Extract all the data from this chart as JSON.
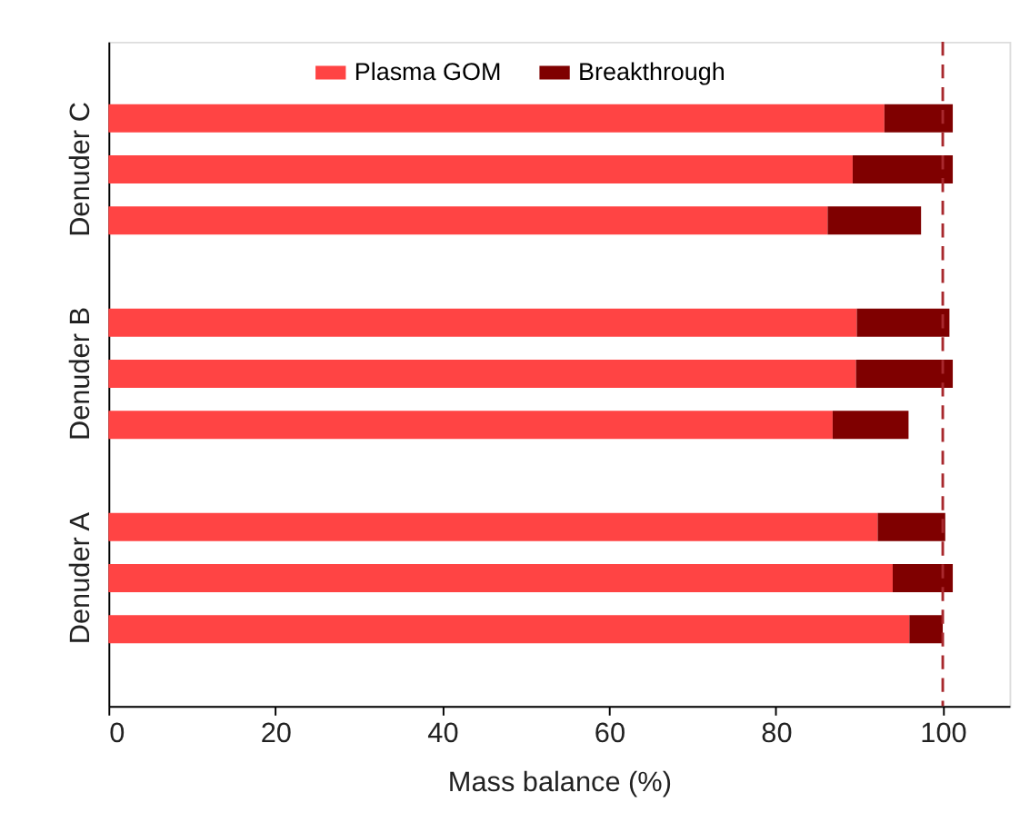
{
  "chart_data": {
    "type": "bar",
    "orientation": "horizontal",
    "stacked": true,
    "categories": [
      null,
      null,
      null,
      null,
      null,
      null,
      null,
      null,
      null,
      null,
      null,
      null,
      null
    ],
    "series": [
      {
        "name": "Plasma GOM",
        "color": "#ff4444",
        "values": [
          null,
          93.0,
          89.2,
          86.2,
          null,
          89.7,
          89.6,
          86.8,
          null,
          92.2,
          94.0,
          96.0,
          null
        ]
      },
      {
        "name": "Breakthrough",
        "color": "#7f0000",
        "values": [
          null,
          8.2,
          12.0,
          11.2,
          null,
          11.1,
          11.6,
          9.1,
          null,
          8.1,
          7.2,
          4.0,
          null
        ]
      }
    ],
    "annotations": [
      "Denuder C",
      "Denuder B",
      "Denuder A"
    ],
    "xlabel": "Mass balance (%)",
    "xlim": [
      0,
      108
    ],
    "xticks": [
      0,
      20,
      40,
      60,
      80,
      100
    ],
    "ref_lines": [
      {
        "axis": "x",
        "value": 100,
        "color": "#a8282d",
        "line_style": "dashed"
      }
    ],
    "legend": "top",
    "grid": false
  }
}
